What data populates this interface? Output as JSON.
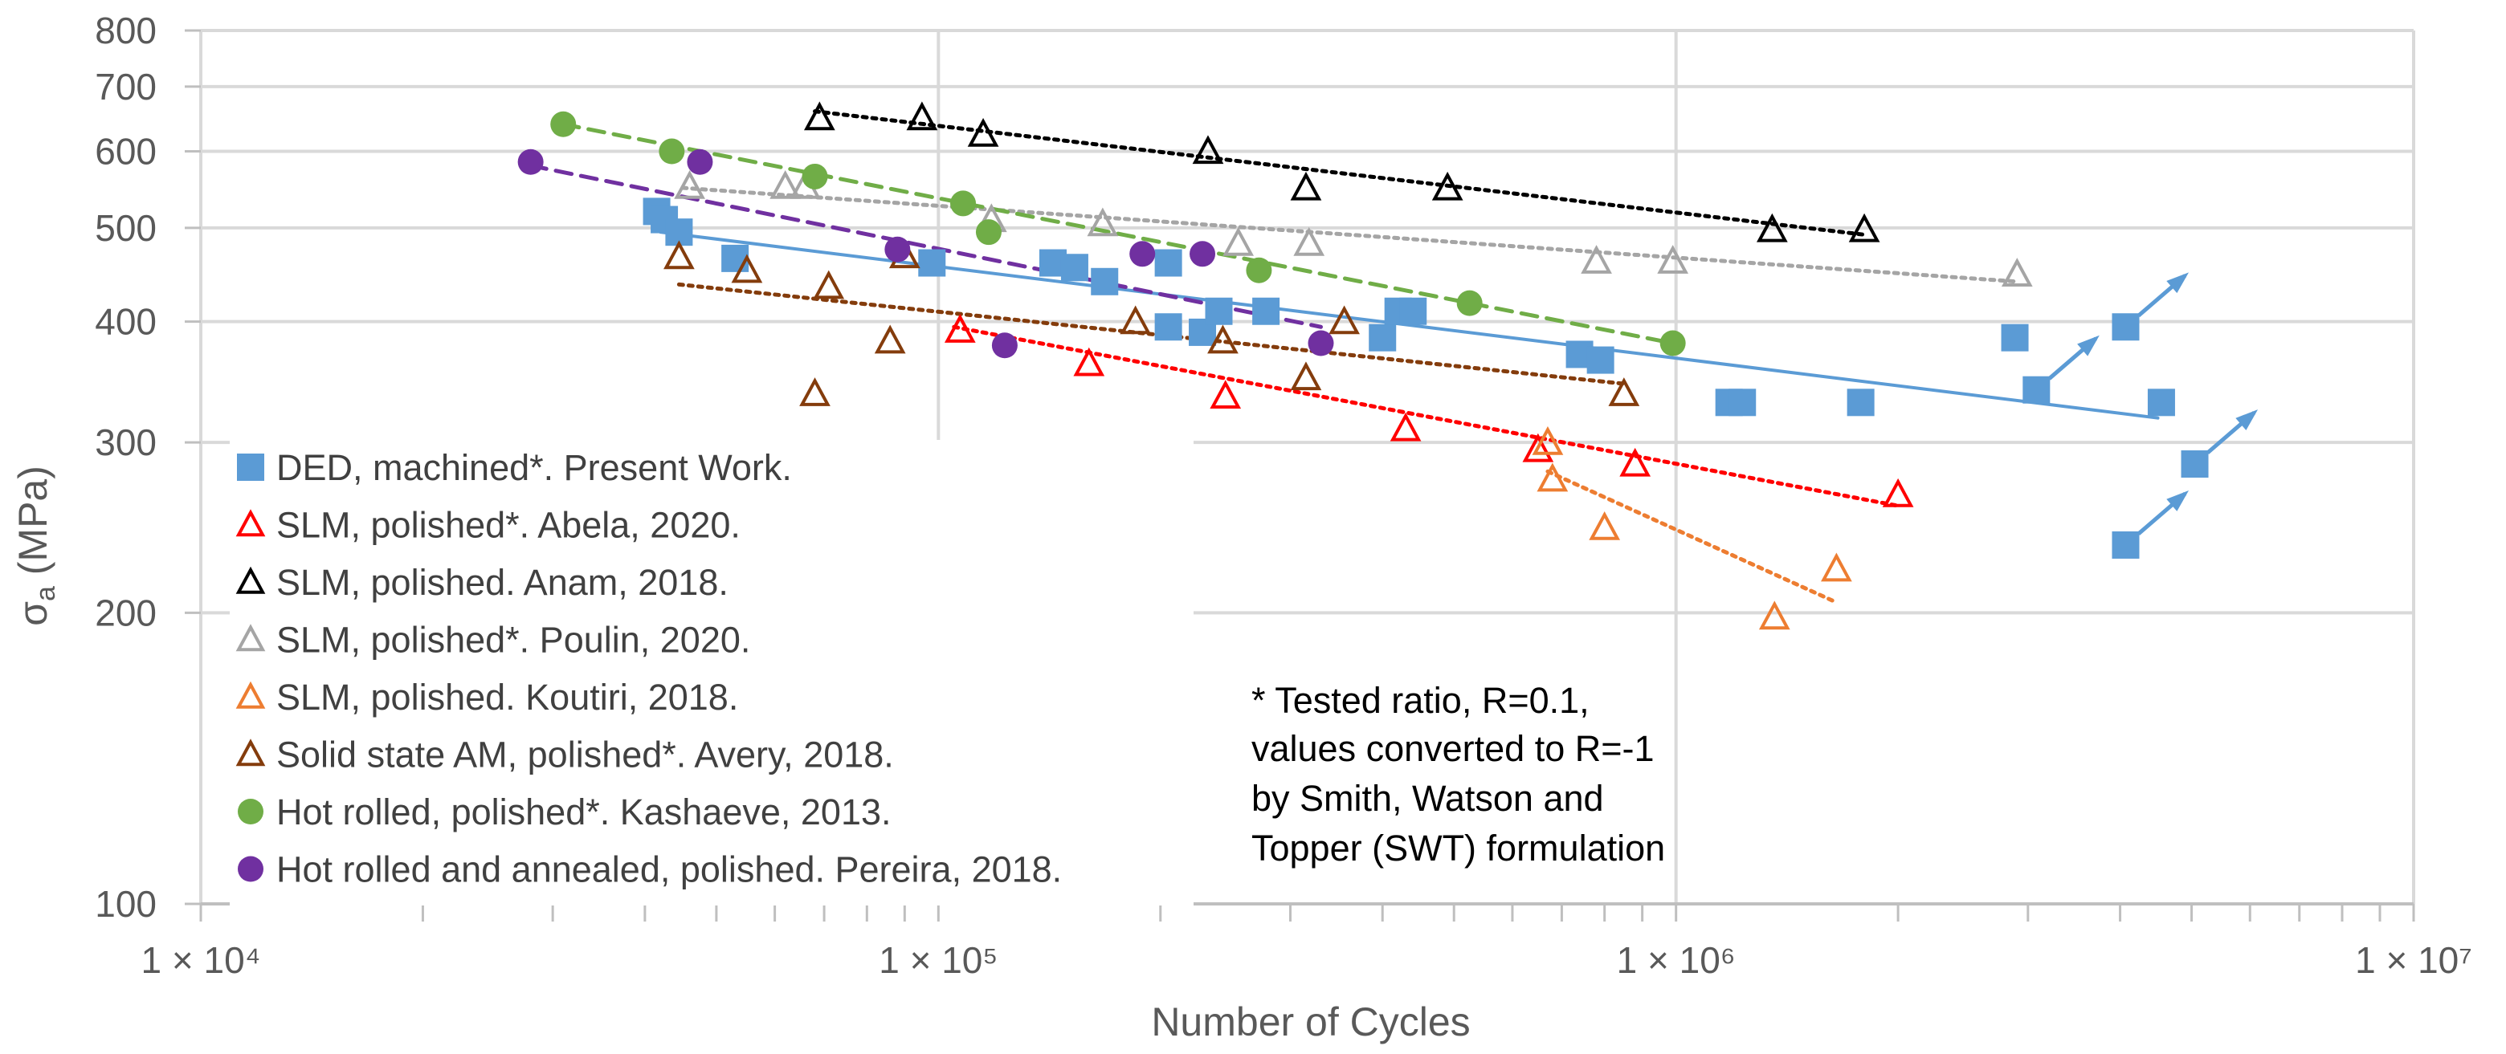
{
  "chart_data": {
    "type": "scatter",
    "title": "",
    "xlabel": "Number of Cycles",
    "ylabel": "σa (MPa)",
    "xscale": "log",
    "yscale": "log",
    "xlim": [
      10000,
      10000000
    ],
    "ylim": [
      100,
      800
    ],
    "x_tick_labels": [
      "1 × 10⁴",
      "1 × 10⁵",
      "1 × 10⁶",
      "1 × 10⁷"
    ],
    "y_ticks": [
      100,
      200,
      300,
      400,
      500,
      600,
      700,
      800
    ],
    "y_tick_labels": [
      "100",
      "200",
      "300",
      "400",
      "500",
      "600",
      "700",
      "800"
    ],
    "grid": true,
    "legend_position": "bottom-left",
    "note": [
      "* Tested ratio, R=0.1,",
      "values converted to R=-1",
      "by Smith, Watson and",
      "Topper  (SWT) formulation"
    ],
    "series": [
      {
        "name": "DED, machined*. Present Work.",
        "marker": "square",
        "filled": true,
        "color": "#5B9BD5",
        "points": [
          [
            41500,
            520
          ],
          [
            42500,
            510
          ],
          [
            44500,
            495
          ],
          [
            53000,
            465
          ],
          [
            98000,
            460
          ],
          [
            143000,
            460
          ],
          [
            153000,
            455
          ],
          [
            168000,
            440
          ],
          [
            205000,
            460
          ],
          [
            205000,
            395
          ],
          [
            228000,
            390
          ],
          [
            240000,
            410
          ],
          [
            278000,
            410
          ],
          [
            400000,
            385
          ],
          [
            420000,
            410
          ],
          [
            440000,
            410
          ],
          [
            740000,
            370
          ],
          [
            790000,
            365
          ],
          [
            1180000,
            330
          ],
          [
            1230000,
            330
          ],
          [
            1780000,
            330
          ],
          [
            2880000,
            385
          ],
          [
            3080000,
            340
          ],
          [
            4070000,
            395
          ],
          [
            4070000,
            235
          ],
          [
            4550000,
            330
          ],
          [
            5050000,
            285
          ]
        ],
        "runouts": [
          [
            3080000,
            340
          ],
          [
            4070000,
            395
          ],
          [
            4070000,
            235
          ],
          [
            5050000,
            285
          ]
        ],
        "trend": {
          "style": "solid",
          "from": [
            42000,
            495
          ],
          "to": [
            4500000,
            318
          ]
        }
      },
      {
        "name": "SLM, polished*. Abela, 2020.",
        "marker": "triangle",
        "filled": false,
        "color": "#FF0000",
        "points": [
          [
            107000,
            392
          ],
          [
            160000,
            362
          ],
          [
            245000,
            335
          ],
          [
            430000,
            310
          ],
          [
            650000,
            295
          ],
          [
            880000,
            285
          ],
          [
            2000000,
            265
          ]
        ],
        "trend": {
          "style": "dotted",
          "from": [
            105000,
            395
          ],
          "to": [
            2000000,
            258
          ]
        }
      },
      {
        "name": "SLM, polished. Anam, 2018.",
        "marker": "triangle",
        "filled": false,
        "color": "#000000",
        "points": [
          [
            69000,
            650
          ],
          [
            95000,
            650
          ],
          [
            115000,
            625
          ],
          [
            232000,
            600
          ],
          [
            315000,
            550
          ],
          [
            490000,
            550
          ],
          [
            1350000,
            498
          ],
          [
            1800000,
            498
          ]
        ],
        "trend": {
          "style": "dotted",
          "from": [
            68000,
            660
          ],
          "to": [
            1800000,
            492
          ]
        }
      },
      {
        "name": "SLM, polished*. Poulin, 2020.",
        "marker": "triangle",
        "filled": false,
        "color": "#A5A5A5",
        "points": [
          [
            46000,
            552
          ],
          [
            62000,
            552
          ],
          [
            66000,
            552
          ],
          [
            118000,
            510
          ],
          [
            167000,
            505
          ],
          [
            255000,
            482
          ],
          [
            318000,
            482
          ],
          [
            780000,
            462
          ],
          [
            990000,
            462
          ],
          [
            2900000,
            448
          ]
        ],
        "trend": {
          "style": "dotted",
          "from": [
            45000,
            550
          ],
          "to": [
            2900000,
            440
          ]
        }
      },
      {
        "name": "SLM, polished. Koutiri, 2018.",
        "marker": "triangle",
        "filled": false,
        "color": "#ED7D31",
        "points": [
          [
            670000,
            300
          ],
          [
            680000,
            275
          ],
          [
            800000,
            245
          ],
          [
            1360000,
            198
          ],
          [
            1650000,
            222
          ]
        ],
        "trend": {
          "style": "dotted",
          "from": [
            670000,
            280
          ],
          "to": [
            1650000,
            205
          ]
        }
      },
      {
        "name": "Solid state AM, polished*. Avery, 2018.",
        "marker": "triangle",
        "filled": false,
        "color": "#843C0C",
        "points": [
          [
            44500,
            467
          ],
          [
            55000,
            452
          ],
          [
            68000,
            337
          ],
          [
            71000,
            435
          ],
          [
            86000,
            382
          ],
          [
            90000,
            468
          ],
          [
            185000,
            400
          ],
          [
            243000,
            382
          ],
          [
            315000,
            350
          ],
          [
            355000,
            400
          ],
          [
            850000,
            337
          ]
        ],
        "trend": {
          "style": "dotted",
          "from": [
            44500,
            437
          ],
          "to": [
            850000,
            345
          ]
        }
      },
      {
        "name": "Hot rolled, polished*. Kashaeve, 2013.",
        "marker": "circle",
        "filled": true,
        "color": "#70AD47",
        "points": [
          [
            31000,
            640
          ],
          [
            43500,
            600
          ],
          [
            68000,
            565
          ],
          [
            108000,
            530
          ],
          [
            117000,
            495
          ],
          [
            272000,
            452
          ],
          [
            525000,
            418
          ],
          [
            990000,
            380
          ]
        ],
        "trend": {
          "style": "dashed",
          "from": [
            31000,
            640
          ],
          "to": [
            990000,
            380
          ]
        }
      },
      {
        "name": "Hot rolled and annealed, polished. Pereira, 2018.",
        "marker": "circle",
        "filled": true,
        "color": "#7030A0",
        "points": [
          [
            28000,
            585
          ],
          [
            47500,
            585
          ],
          [
            88000,
            475
          ],
          [
            123000,
            378
          ],
          [
            189000,
            470
          ],
          [
            228000,
            470
          ],
          [
            330000,
            380
          ]
        ],
        "trend": {
          "style": "dashed",
          "from": [
            28000,
            580
          ],
          "to": [
            330000,
            395
          ]
        }
      }
    ]
  }
}
